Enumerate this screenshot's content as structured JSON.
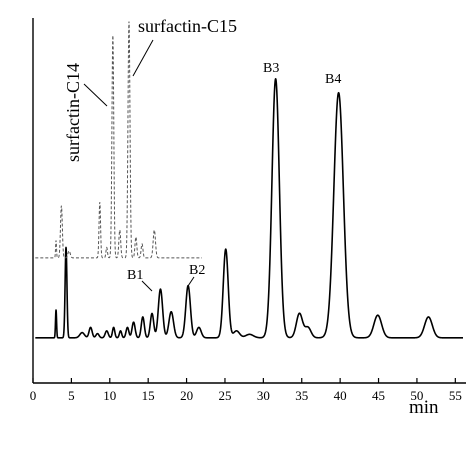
{
  "chart_data": {
    "type": "line",
    "title": "",
    "xlabel": "min",
    "ylabel": "",
    "xlim": [
      0,
      56
    ],
    "ylim": [
      0,
      1.05
    ],
    "xticks": [
      0,
      5,
      10,
      15,
      20,
      25,
      30,
      35,
      40,
      45,
      50,
      55
    ],
    "grid": false,
    "series": [
      {
        "name": "",
        "style": "solid",
        "color": "#000000",
        "baseline": 0.13,
        "peaks": [
          {
            "x": 3.0,
            "h": 0.08,
            "w": 0.07
          },
          {
            "x": 4.3,
            "h": 0.26,
            "w": 0.12
          },
          {
            "x": 6.4,
            "h": 0.015,
            "w": 0.3
          },
          {
            "x": 7.5,
            "h": 0.03,
            "w": 0.2
          },
          {
            "x": 8.4,
            "h": 0.012,
            "w": 0.2
          },
          {
            "x": 9.6,
            "h": 0.02,
            "w": 0.2
          },
          {
            "x": 10.5,
            "h": 0.03,
            "w": 0.15
          },
          {
            "x": 11.4,
            "h": 0.02,
            "w": 0.15
          },
          {
            "x": 12.3,
            "h": 0.03,
            "w": 0.18
          },
          {
            "x": 13.1,
            "h": 0.045,
            "w": 0.2
          },
          {
            "x": 14.3,
            "h": 0.06,
            "w": 0.2
          },
          {
            "x": 15.5,
            "h": 0.07,
            "w": 0.22
          },
          {
            "x": 16.6,
            "h": 0.14,
            "w": 0.28
          },
          {
            "x": 18.0,
            "h": 0.075,
            "w": 0.3
          },
          {
            "x": 20.2,
            "h": 0.15,
            "w": 0.3
          },
          {
            "x": 21.6,
            "h": 0.03,
            "w": 0.3
          },
          {
            "x": 25.1,
            "h": 0.255,
            "w": 0.32
          },
          {
            "x": 26.5,
            "h": 0.02,
            "w": 0.4
          },
          {
            "x": 28.2,
            "h": 0.01,
            "w": 0.5
          },
          {
            "x": 31.6,
            "h": 0.745,
            "w": 0.48
          },
          {
            "x": 34.7,
            "h": 0.07,
            "w": 0.4
          },
          {
            "x": 35.8,
            "h": 0.03,
            "w": 0.4
          },
          {
            "x": 39.8,
            "h": 0.705,
            "w": 0.62
          },
          {
            "x": 44.9,
            "h": 0.065,
            "w": 0.5
          },
          {
            "x": 51.5,
            "h": 0.06,
            "w": 0.5
          }
        ],
        "x_range": [
          0.3,
          56
        ]
      },
      {
        "name": "",
        "style": "dashed",
        "color": "#555555",
        "baseline": 0.36,
        "peaks": [
          {
            "x": 3.0,
            "h": 0.05,
            "w": 0.06
          },
          {
            "x": 3.7,
            "h": 0.15,
            "w": 0.12
          },
          {
            "x": 4.7,
            "h": 0.02,
            "w": 0.15
          },
          {
            "x": 8.7,
            "h": 0.16,
            "w": 0.1
          },
          {
            "x": 9.6,
            "h": 0.03,
            "w": 0.1
          },
          {
            "x": 10.4,
            "h": 0.64,
            "w": 0.12
          },
          {
            "x": 11.3,
            "h": 0.08,
            "w": 0.12
          },
          {
            "x": 12.5,
            "h": 0.68,
            "w": 0.13
          },
          {
            "x": 13.4,
            "h": 0.06,
            "w": 0.12
          },
          {
            "x": 14.2,
            "h": 0.04,
            "w": 0.12
          },
          {
            "x": 15.8,
            "h": 0.08,
            "w": 0.15
          }
        ],
        "x_range": [
          0.3,
          22
        ]
      }
    ],
    "annotations": {
      "B1": "B1",
      "B2": "B2",
      "B3": "B3",
      "B4": "B4",
      "c14": "surfactin-C14",
      "c15": "surfactin-C15"
    }
  }
}
